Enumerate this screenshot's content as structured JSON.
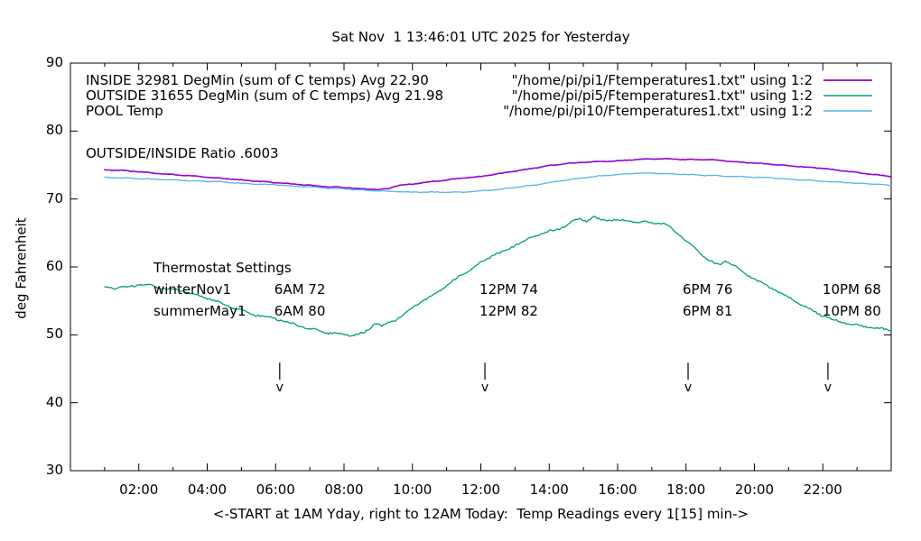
{
  "chart_data": {
    "type": "line",
    "title": "Sat Nov  1 13:46:01 UTC 2025 for Yesterday",
    "ylabel": "deg Fahrenheit",
    "xlabel": "<-START at 1AM Yday, right to 12AM Today:  Temp Readings every 1[15] min->",
    "xlim_hours": [
      0,
      24
    ],
    "ylim": [
      30,
      90
    ],
    "grid": false,
    "legend_position": "top-inside",
    "y_ticks": [
      30,
      40,
      50,
      60,
      70,
      80,
      90
    ],
    "x_ticks": [
      {
        "hour": 2,
        "label": "02:00"
      },
      {
        "hour": 4,
        "label": "04:00"
      },
      {
        "hour": 6,
        "label": "06:00"
      },
      {
        "hour": 8,
        "label": "08:00"
      },
      {
        "hour": 10,
        "label": "10:00"
      },
      {
        "hour": 12,
        "label": "12:00"
      },
      {
        "hour": 14,
        "label": "14:00"
      },
      {
        "hour": 16,
        "label": "16:00"
      },
      {
        "hour": 18,
        "label": "18:00"
      },
      {
        "hour": 20,
        "label": "20:00"
      },
      {
        "hour": 22,
        "label": "22:00"
      }
    ],
    "x_minor_tick_hours": [
      1,
      3,
      5,
      7,
      9,
      11,
      13,
      15,
      17,
      19,
      21,
      23
    ],
    "series": [
      {
        "name": "INSIDE",
        "legend_label": "INSIDE 32981 DegMin (sum of C temps) Avg 22.90",
        "file_label": "\"/home/pi/pi1/Ftemperatures1.txt\" using 1:2",
        "color": "#9400d3",
        "stroke_width": 1.6,
        "jitter": 0.07,
        "points": [
          [
            1,
            74.3
          ],
          [
            1.5,
            74.2
          ],
          [
            2,
            74.0
          ],
          [
            2.5,
            73.8
          ],
          [
            3,
            73.6
          ],
          [
            3.5,
            73.4
          ],
          [
            4,
            73.2
          ],
          [
            4.5,
            73.0
          ],
          [
            5,
            72.8
          ],
          [
            5.5,
            72.6
          ],
          [
            6,
            72.4
          ],
          [
            6.5,
            72.2
          ],
          [
            7,
            72.0
          ],
          [
            7.5,
            71.8
          ],
          [
            8,
            71.7
          ],
          [
            8.5,
            71.5
          ],
          [
            9,
            71.4
          ],
          [
            9.3,
            71.5
          ],
          [
            9.45,
            71.8
          ],
          [
            9.6,
            72.0
          ],
          [
            10,
            72.2
          ],
          [
            10.5,
            72.5
          ],
          [
            11,
            72.8
          ],
          [
            11.5,
            73.1
          ],
          [
            12,
            73.3
          ],
          [
            12.5,
            73.7
          ],
          [
            13,
            74.1
          ],
          [
            13.5,
            74.5
          ],
          [
            14,
            74.9
          ],
          [
            14.5,
            75.2
          ],
          [
            15,
            75.4
          ],
          [
            15.5,
            75.5
          ],
          [
            16,
            75.6
          ],
          [
            16.5,
            75.8
          ],
          [
            17,
            75.9
          ],
          [
            17.5,
            75.9
          ],
          [
            18,
            75.8
          ],
          [
            18.5,
            75.8
          ],
          [
            19,
            75.7
          ],
          [
            19.3,
            75.5
          ],
          [
            19.6,
            75.4
          ],
          [
            20,
            75.3
          ],
          [
            20.5,
            75.1
          ],
          [
            21,
            74.9
          ],
          [
            21.5,
            74.7
          ],
          [
            22,
            74.5
          ],
          [
            22.5,
            74.2
          ],
          [
            23,
            73.9
          ],
          [
            23.5,
            73.6
          ],
          [
            24,
            73.3
          ]
        ]
      },
      {
        "name": "OUTSIDE",
        "legend_label": "OUTSIDE 31655 DegMin (sum of C temps) Avg 21.98",
        "file_label": "\"/home/pi/pi5/Ftemperatures1.txt\" using 1:2",
        "color": "#009e73",
        "stroke_width": 1.3,
        "jitter": 0.22,
        "points": [
          [
            1,
            57.1
          ],
          [
            1.3,
            56.9
          ],
          [
            1.6,
            57.0
          ],
          [
            2,
            57.4
          ],
          [
            2.3,
            57.4
          ],
          [
            2.6,
            56.9
          ],
          [
            3,
            56.6
          ],
          [
            3.3,
            56.5
          ],
          [
            3.6,
            55.9
          ],
          [
            4,
            55.4
          ],
          [
            4.5,
            54.5
          ],
          [
            5,
            53.6
          ],
          [
            5.3,
            53.0
          ],
          [
            5.6,
            52.8
          ],
          [
            6,
            52.4
          ],
          [
            6.5,
            51.6
          ],
          [
            7,
            50.9
          ],
          [
            7.5,
            50.3
          ],
          [
            8,
            50.0
          ],
          [
            8.3,
            50.0
          ],
          [
            8.6,
            50.3
          ],
          [
            8.9,
            51.7
          ],
          [
            9.1,
            51.3
          ],
          [
            9.5,
            52.2
          ],
          [
            10,
            54.0
          ],
          [
            10.3,
            55.0
          ],
          [
            10.6,
            55.8
          ],
          [
            11,
            57.3
          ],
          [
            11.3,
            58.3
          ],
          [
            11.6,
            59.3
          ],
          [
            12,
            60.6
          ],
          [
            12.3,
            61.6
          ],
          [
            12.6,
            62.1
          ],
          [
            13,
            63.2
          ],
          [
            13.3,
            63.8
          ],
          [
            13.6,
            64.6
          ],
          [
            14,
            65.2
          ],
          [
            14.3,
            65.6
          ],
          [
            14.6,
            66.4
          ],
          [
            14.9,
            67.2
          ],
          [
            15.1,
            66.8
          ],
          [
            15.3,
            67.3
          ],
          [
            15.5,
            66.9
          ],
          [
            15.8,
            67.0
          ],
          [
            16,
            66.8
          ],
          [
            16.3,
            66.9
          ],
          [
            16.6,
            66.6
          ],
          [
            17,
            66.5
          ],
          [
            17.3,
            66.4
          ],
          [
            17.5,
            65.9
          ],
          [
            17.8,
            64.8
          ],
          [
            18,
            63.9
          ],
          [
            18.3,
            62.5
          ],
          [
            18.6,
            61.3
          ],
          [
            18.85,
            60.4
          ],
          [
            19,
            60.3
          ],
          [
            19.15,
            60.9
          ],
          [
            19.35,
            60.4
          ],
          [
            19.6,
            59.4
          ],
          [
            20,
            58.2
          ],
          [
            20.3,
            57.4
          ],
          [
            20.6,
            56.6
          ],
          [
            21,
            55.5
          ],
          [
            21.3,
            54.7
          ],
          [
            21.6,
            53.8
          ],
          [
            22,
            52.8
          ],
          [
            22.3,
            52.2
          ],
          [
            22.6,
            51.8
          ],
          [
            23,
            51.4
          ],
          [
            23.3,
            51.2
          ],
          [
            23.6,
            50.9
          ],
          [
            24,
            50.7
          ]
        ]
      },
      {
        "name": "POOL",
        "legend_label": "POOL Temp",
        "file_label": "\"/home/pi/pi10/Ftemperatures1.txt\" using 1:2",
        "color": "#56b4e9",
        "stroke_width": 1.3,
        "jitter": 0.07,
        "points": [
          [
            1,
            73.2
          ],
          [
            1.5,
            73.1
          ],
          [
            2,
            73.0
          ],
          [
            2.5,
            72.9
          ],
          [
            3,
            72.8
          ],
          [
            3.5,
            72.7
          ],
          [
            4,
            72.6
          ],
          [
            4.5,
            72.5
          ],
          [
            5,
            72.3
          ],
          [
            5.5,
            72.2
          ],
          [
            6,
            72.1
          ],
          [
            6.5,
            71.9
          ],
          [
            7,
            71.8
          ],
          [
            7.5,
            71.6
          ],
          [
            8,
            71.5
          ],
          [
            8.5,
            71.3
          ],
          [
            9,
            71.2
          ],
          [
            9.5,
            71.1
          ],
          [
            10,
            71.0
          ],
          [
            10.5,
            71.0
          ],
          [
            11,
            71.0
          ],
          [
            11.5,
            71.0
          ],
          [
            12,
            71.2
          ],
          [
            12.5,
            71.4
          ],
          [
            13,
            71.7
          ],
          [
            13.5,
            72.0
          ],
          [
            14,
            72.4
          ],
          [
            14.5,
            72.8
          ],
          [
            15,
            73.1
          ],
          [
            15.5,
            73.4
          ],
          [
            16,
            73.6
          ],
          [
            16.5,
            73.8
          ],
          [
            17,
            73.8
          ],
          [
            17.5,
            73.7
          ],
          [
            18,
            73.6
          ],
          [
            18.5,
            73.5
          ],
          [
            19,
            73.4
          ],
          [
            19.5,
            73.3
          ],
          [
            20,
            73.2
          ],
          [
            20.5,
            73.1
          ],
          [
            21,
            72.9
          ],
          [
            21.5,
            72.8
          ],
          [
            22,
            72.6
          ],
          [
            22.5,
            72.5
          ],
          [
            23,
            72.3
          ],
          [
            23.5,
            72.2
          ],
          [
            24,
            72.0
          ]
        ]
      }
    ],
    "annotations": {
      "ratio": "OUTSIDE/INSIDE Ratio .6003",
      "thermostat": {
        "header": "Thermostat Settings",
        "rows": [
          {
            "label": "winterNov1",
            "cells": [
              "6AM 72",
              "12PM 74",
              "6PM 76",
              "10PM 68"
            ]
          },
          {
            "label": "summerMay1",
            "cells": [
              "6AM 80",
              "12PM 82",
              "6PM 81",
              "10PM 80"
            ]
          }
        ]
      },
      "markers": {
        "hours": [
          6.12,
          12.12,
          18.06,
          22.15
        ],
        "glyph": "v",
        "line_top_f": 45.9,
        "line_bottom_f": 43.4,
        "glyph_f": 41.7
      }
    }
  }
}
